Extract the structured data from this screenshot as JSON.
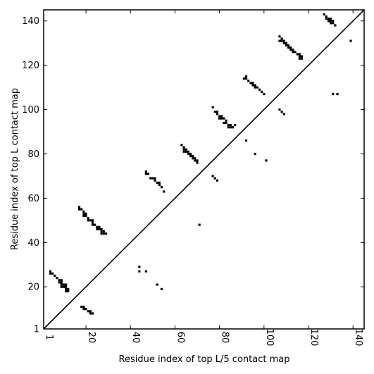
{
  "chart_data": {
    "type": "scatter",
    "title": "",
    "xlabel": "Residue index of top L/5 contact map",
    "ylabel": "Residue index of top L contact map",
    "xlim": [
      1,
      145
    ],
    "ylim": [
      1,
      145
    ],
    "x_ticks": [
      1,
      20,
      40,
      60,
      80,
      100,
      120,
      140
    ],
    "y_ticks": [
      1,
      20,
      40,
      60,
      80,
      100,
      120,
      140
    ],
    "x_tick_labels": [
      "1",
      "20",
      "40",
      "60",
      "80",
      "100",
      "120",
      "140"
    ],
    "y_tick_labels": [
      "1",
      "20",
      "40",
      "60",
      "80",
      "100",
      "120",
      "140"
    ],
    "grid": false,
    "diagonal": true,
    "marker_color": "#000000",
    "series": [
      {
        "points": [
          [
            4,
            27
          ],
          [
            4,
            26
          ],
          [
            5,
            26
          ],
          [
            6,
            25
          ],
          [
            7,
            24
          ],
          [
            8,
            23
          ],
          [
            8,
            22
          ],
          [
            9,
            23
          ],
          [
            9,
            22
          ],
          [
            9,
            21
          ],
          [
            9,
            20
          ],
          [
            10,
            21
          ],
          [
            10,
            20
          ],
          [
            11,
            21
          ],
          [
            11,
            20
          ],
          [
            11,
            19
          ],
          [
            11,
            18
          ],
          [
            12,
            19
          ],
          [
            12,
            18
          ],
          [
            18,
            11
          ],
          [
            19,
            11
          ],
          [
            19,
            10
          ],
          [
            20,
            10
          ],
          [
            21,
            9
          ],
          [
            22,
            9
          ],
          [
            22,
            8
          ],
          [
            23,
            8
          ],
          [
            17,
            56
          ],
          [
            17,
            55
          ],
          [
            18,
            55
          ],
          [
            19,
            54
          ],
          [
            19,
            53
          ],
          [
            19,
            52
          ],
          [
            20,
            53
          ],
          [
            20,
            52
          ],
          [
            21,
            51
          ],
          [
            21,
            50
          ],
          [
            22,
            50
          ],
          [
            23,
            50
          ],
          [
            23,
            49
          ],
          [
            23,
            48
          ],
          [
            24,
            48
          ],
          [
            25,
            47
          ],
          [
            25,
            46
          ],
          [
            26,
            47
          ],
          [
            26,
            46
          ],
          [
            27,
            46
          ],
          [
            27,
            45
          ],
          [
            27,
            44
          ],
          [
            28,
            45
          ],
          [
            28,
            44
          ],
          [
            29,
            44
          ],
          [
            44,
            29
          ],
          [
            44,
            27
          ],
          [
            47,
            27
          ],
          [
            47,
            72
          ],
          [
            47,
            71
          ],
          [
            48,
            71
          ],
          [
            49,
            69
          ],
          [
            50,
            69
          ],
          [
            51,
            69
          ],
          [
            51,
            68
          ],
          [
            52,
            67
          ],
          [
            53,
            67
          ],
          [
            53,
            66
          ],
          [
            54,
            65
          ],
          [
            55,
            63
          ],
          [
            52,
            21
          ],
          [
            54,
            19
          ],
          [
            71,
            48
          ],
          [
            63,
            84
          ],
          [
            64,
            83
          ],
          [
            64,
            82
          ],
          [
            64,
            81
          ],
          [
            65,
            82
          ],
          [
            65,
            81
          ],
          [
            66,
            81
          ],
          [
            66,
            80
          ],
          [
            67,
            80
          ],
          [
            67,
            79
          ],
          [
            68,
            79
          ],
          [
            68,
            78
          ],
          [
            69,
            78
          ],
          [
            69,
            77
          ],
          [
            70,
            77
          ],
          [
            70,
            76
          ],
          [
            77,
            101
          ],
          [
            78,
            99
          ],
          [
            79,
            99
          ],
          [
            79,
            98
          ],
          [
            80,
            97
          ],
          [
            80,
            96
          ],
          [
            81,
            97
          ],
          [
            81,
            96
          ],
          [
            82,
            96
          ],
          [
            82,
            94
          ],
          [
            83,
            95
          ],
          [
            83,
            94
          ],
          [
            84,
            93
          ],
          [
            84,
            92
          ],
          [
            85,
            93
          ],
          [
            85,
            92
          ],
          [
            86,
            92
          ],
          [
            87,
            93
          ],
          [
            92,
            86
          ],
          [
            77,
            70
          ],
          [
            78,
            69
          ],
          [
            79,
            68
          ],
          [
            96,
            80
          ],
          [
            101,
            77
          ],
          [
            91,
            114
          ],
          [
            92,
            115
          ],
          [
            92,
            114
          ],
          [
            93,
            113
          ],
          [
            94,
            112
          ],
          [
            95,
            112
          ],
          [
            95,
            111
          ],
          [
            96,
            111
          ],
          [
            96,
            110
          ],
          [
            97,
            110
          ],
          [
            98,
            109
          ],
          [
            99,
            108
          ],
          [
            100,
            107
          ],
          [
            107,
            133
          ],
          [
            107,
            131
          ],
          [
            108,
            132
          ],
          [
            108,
            131
          ],
          [
            109,
            131
          ],
          [
            109,
            130
          ],
          [
            110,
            130
          ],
          [
            110,
            129
          ],
          [
            111,
            129
          ],
          [
            111,
            128
          ],
          [
            112,
            128
          ],
          [
            112,
            127
          ],
          [
            113,
            127
          ],
          [
            113,
            126
          ],
          [
            114,
            126
          ],
          [
            115,
            125
          ],
          [
            116,
            125
          ],
          [
            116,
            124
          ],
          [
            116,
            123
          ],
          [
            117,
            124
          ],
          [
            117,
            123
          ],
          [
            127,
            143
          ],
          [
            128,
            142
          ],
          [
            128,
            141
          ],
          [
            129,
            141
          ],
          [
            129,
            140
          ],
          [
            130,
            141
          ],
          [
            130,
            140
          ],
          [
            130,
            139
          ],
          [
            131,
            140
          ],
          [
            131,
            139
          ],
          [
            132,
            138
          ],
          [
            139,
            131
          ],
          [
            107,
            100
          ],
          [
            108,
            99
          ],
          [
            109,
            98
          ],
          [
            131,
            107
          ],
          [
            133,
            107
          ]
        ]
      }
    ]
  }
}
